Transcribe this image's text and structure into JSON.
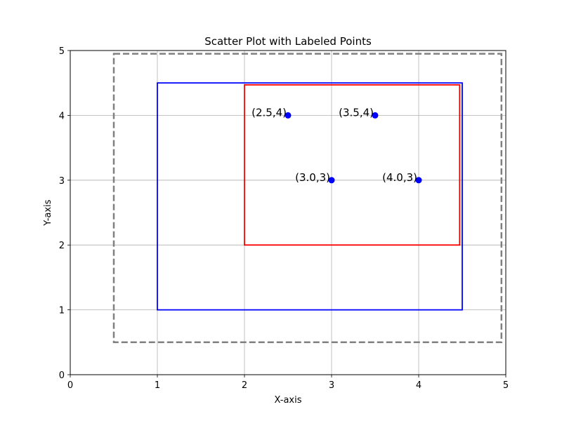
{
  "chart_data": {
    "type": "scatter",
    "title": "Scatter Plot with Labeled Points",
    "xlabel": "X-axis",
    "ylabel": "Y-axis",
    "xlim": [
      0,
      5
    ],
    "ylim": [
      0,
      5
    ],
    "xticks": [
      "0",
      "1",
      "2",
      "3",
      "4",
      "5"
    ],
    "yticks": [
      "0",
      "1",
      "2",
      "3",
      "4",
      "5"
    ],
    "grid": true,
    "points": [
      {
        "x": 2.5,
        "y": 4,
        "label": "(2.5,4)"
      },
      {
        "x": 3.5,
        "y": 4,
        "label": "(3.5,4)"
      },
      {
        "x": 3.0,
        "y": 3,
        "label": "(3.0,3)"
      },
      {
        "x": 4.0,
        "y": 3,
        "label": "(4.0,3)"
      }
    ],
    "rectangles": [
      {
        "x0": 0.5,
        "y0": 0.5,
        "x1": 4.95,
        "y1": 4.95,
        "color": "#808080",
        "style": "dashed"
      },
      {
        "x0": 1.0,
        "y0": 1.0,
        "x1": 4.5,
        "y1": 4.5,
        "color": "#0000ff",
        "style": "solid"
      },
      {
        "x0": 2.0,
        "y0": 2.0,
        "x1": 4.47,
        "y1": 4.47,
        "color": "#ff0000",
        "style": "solid"
      }
    ],
    "point_color": "#0000ff",
    "grid_color": "#b0b0b0"
  }
}
